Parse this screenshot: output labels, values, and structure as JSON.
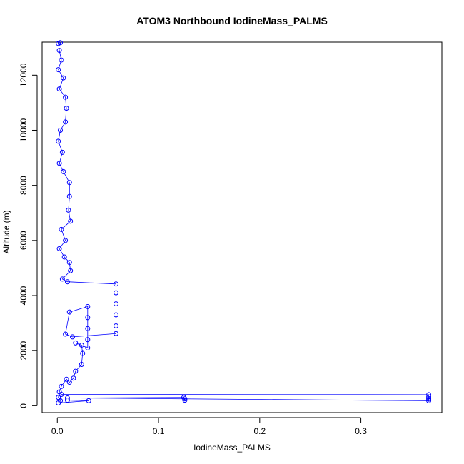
{
  "chart_data": {
    "type": "scatter",
    "title": "ATOM3 Northbound IodineMass_PALMS",
    "xlabel": "IodineMass_PALMS",
    "ylabel": "Altitude (m)",
    "xlim": [
      -0.015,
      0.38
    ],
    "ylim": [
      -250,
      13200
    ],
    "x_ticks": [
      0.0,
      0.1,
      0.2,
      0.3
    ],
    "x_tick_labels": [
      "0.0",
      "0.1",
      "0.2",
      "0.3"
    ],
    "y_ticks": [
      0,
      2000,
      4000,
      6000,
      8000,
      10000,
      12000
    ],
    "y_tick_labels": [
      "0",
      "2000",
      "4000",
      "6000",
      "8000",
      "10000",
      "12000"
    ],
    "grid": false,
    "legend": "none",
    "series": [
      {
        "color": "#0000ff",
        "marker": "open-circle",
        "line": true,
        "points": [
          [
            0.003,
            13180
          ],
          [
            0.001,
            13150
          ],
          [
            0.002,
            12900
          ],
          [
            0.004,
            12550
          ],
          [
            0.001,
            12200
          ],
          [
            0.006,
            11900
          ],
          [
            0.002,
            11500
          ],
          [
            0.008,
            11200
          ],
          [
            0.009,
            10800
          ],
          [
            0.008,
            10300
          ],
          [
            0.003,
            10000
          ],
          [
            0.001,
            9600
          ],
          [
            0.005,
            9200
          ],
          [
            0.002,
            8800
          ],
          [
            0.006,
            8500
          ],
          [
            0.012,
            8100
          ],
          [
            0.012,
            7600
          ],
          [
            0.011,
            7100
          ],
          [
            0.013,
            6700
          ],
          [
            0.004,
            6400
          ],
          [
            0.008,
            6000
          ],
          [
            0.002,
            5700
          ],
          [
            0.007,
            5400
          ],
          [
            0.012,
            5200
          ],
          [
            0.013,
            4900
          ],
          [
            0.005,
            4600
          ],
          [
            0.01,
            4500
          ],
          [
            0.058,
            4420
          ],
          [
            0.058,
            4100
          ],
          [
            0.058,
            3700
          ],
          [
            0.058,
            3300
          ],
          [
            0.058,
            2900
          ],
          [
            0.058,
            2620
          ],
          [
            0.015,
            2500
          ],
          [
            0.008,
            2600
          ],
          [
            0.012,
            3400
          ],
          [
            0.03,
            3600
          ],
          [
            0.03,
            3200
          ],
          [
            0.03,
            2800
          ],
          [
            0.03,
            2400
          ],
          [
            0.03,
            2100
          ],
          [
            0.018,
            2280
          ],
          [
            0.024,
            2200
          ],
          [
            0.025,
            1900
          ],
          [
            0.024,
            1500
          ],
          [
            0.018,
            1250
          ],
          [
            0.016,
            1000
          ],
          [
            0.012,
            850
          ],
          [
            0.009,
            960
          ],
          [
            0.004,
            700
          ],
          [
            0.002,
            500
          ],
          [
            0.001,
            300
          ],
          [
            0.003,
            180
          ],
          [
            0.004,
            410
          ],
          [
            0.367,
            400
          ],
          [
            0.367,
            320
          ],
          [
            0.367,
            240
          ],
          [
            0.367,
            180
          ],
          [
            0.01,
            280
          ],
          [
            0.125,
            300
          ],
          [
            0.126,
            250
          ],
          [
            0.126,
            200
          ],
          [
            0.01,
            200
          ],
          [
            0.031,
            180
          ],
          [
            0.001,
            100
          ]
        ]
      }
    ]
  }
}
